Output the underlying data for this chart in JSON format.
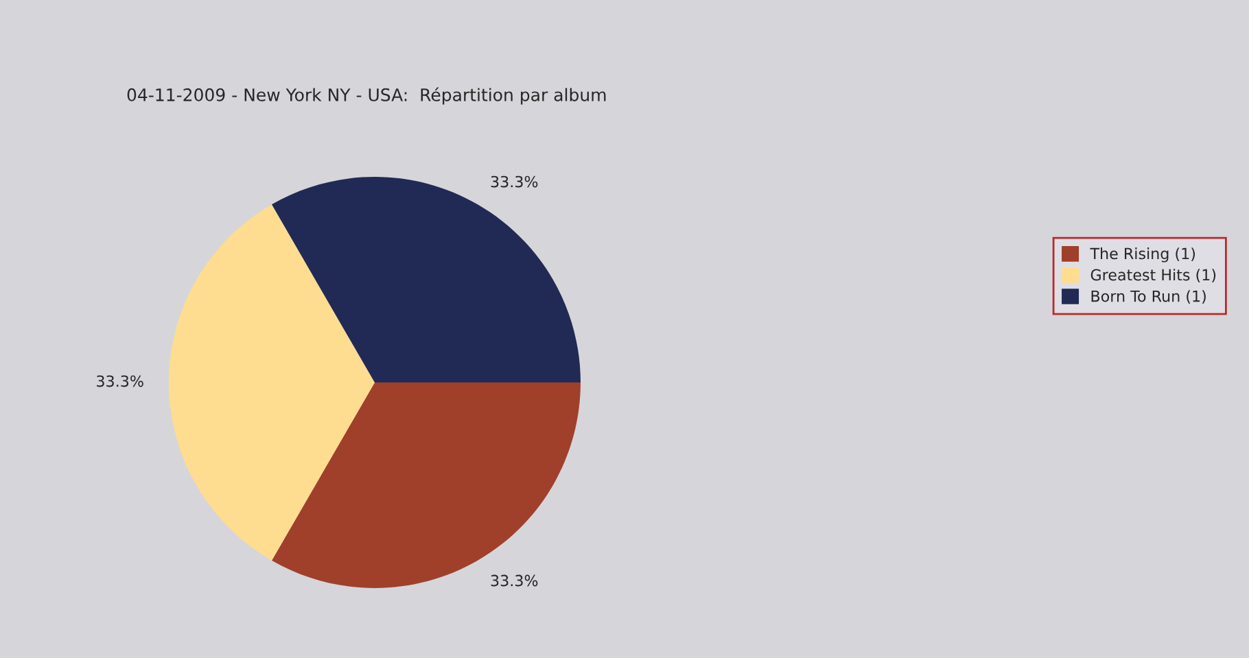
{
  "chart_data": {
    "type": "pie",
    "title": "04-11-2009 - New York NY - USA:  Répartition par album",
    "categories": [
      "The Rising (1)",
      "Greatest Hits (1)",
      "Born To Run (1)"
    ],
    "values": [
      33.3,
      33.3,
      33.3
    ],
    "value_labels": [
      "33.3%",
      "33.3%",
      "33.3%"
    ],
    "colors": [
      "#a0402a",
      "#ffdd90",
      "#212a55"
    ],
    "legend": "right"
  }
}
